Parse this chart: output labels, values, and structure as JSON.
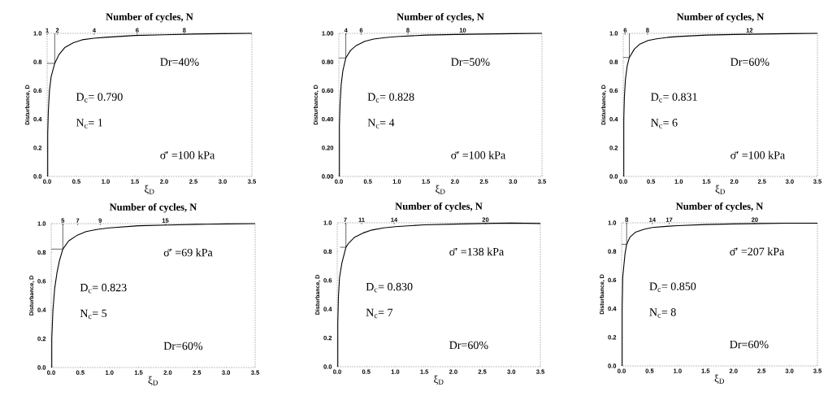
{
  "chart_data": [
    {
      "type": "line",
      "title": "Number of cycles, N",
      "xlabel": "ξ$_{D}$",
      "ylabel": "Disturbance, D",
      "xlim": [
        0,
        3.5
      ],
      "ylim": [
        0,
        1
      ],
      "xticks": [
        {
          "value": 0,
          "label": "0.0"
        },
        {
          "value": 0.5,
          "label": "0.5"
        },
        {
          "value": 1,
          "label": "1.0"
        },
        {
          "value": 1.5,
          "label": "1.5"
        },
        {
          "value": 2,
          "label": "2.0"
        },
        {
          "value": 2.5,
          "label": "2.5"
        },
        {
          "value": 3,
          "label": "3.0"
        },
        {
          "value": 3.5,
          "label": "3.5"
        }
      ],
      "yticks": [
        {
          "value": 0,
          "label": "0.0"
        },
        {
          "value": 0.2,
          "label": "0.2"
        },
        {
          "value": 0.4,
          "label": "0.4"
        },
        {
          "value": 0.6,
          "label": "0.6"
        },
        {
          "value": 0.8,
          "label": "0.8"
        },
        {
          "value": 1,
          "label": "1.0"
        }
      ],
      "series": [
        {
          "color": "#000000",
          "x": [
            0.01,
            0.01,
            0.02,
            0.04,
            0.07,
            0.13,
            0.2,
            0.3,
            0.45,
            0.6,
            0.8,
            1.0,
            1.5,
            2.0,
            2.5,
            3.0,
            3.5
          ],
          "values": [
            0,
            0.3,
            0.45,
            0.6,
            0.7,
            0.79,
            0.85,
            0.9,
            0.935,
            0.955,
            0.966,
            0.972,
            0.985,
            0.99,
            0.995,
            0.998,
            1.0
          ]
        },
        {
          "color": "#000000",
          "x": [
            0,
            0.13,
            0.13
          ],
          "values": [
            0.79,
            0.79,
            1.0
          ]
        }
      ],
      "annotations": [
        "Dr=40%",
        "D$_{c}$= 0.790",
        "N$_{c}$= 1",
        "σ̄′ =100 kPa",
        "1",
        "2",
        "4",
        "6",
        "8"
      ]
    },
    {
      "type": "line",
      "title": "Number of cycles, N",
      "xlabel": "ξ$_{D}$",
      "ylabel": "Disturbance, D",
      "xlim": [
        0,
        3.5
      ],
      "ylim": [
        0,
        1
      ],
      "xticks": [
        {
          "value": 0,
          "label": "0.0"
        },
        {
          "value": 0.5,
          "label": "0.5"
        },
        {
          "value": 1,
          "label": "1.0"
        },
        {
          "value": 1.5,
          "label": "1.5"
        },
        {
          "value": 2,
          "label": "2.0"
        },
        {
          "value": 2.5,
          "label": "2.5"
        },
        {
          "value": 3,
          "label": "3.0"
        },
        {
          "value": 3.5,
          "label": "3.5"
        }
      ],
      "yticks": [
        {
          "value": 0,
          "label": "0.00"
        },
        {
          "value": 0.2,
          "label": "0.20"
        },
        {
          "value": 0.4,
          "label": "0.40"
        },
        {
          "value": 0.6,
          "label": "0.60"
        },
        {
          "value": 0.8,
          "label": "0.80"
        },
        {
          "value": 1,
          "label": "1.00"
        }
      ],
      "series": [
        {
          "color": "#000000",
          "x": [
            0.01,
            0.01,
            0.02,
            0.04,
            0.07,
            0.12,
            0.2,
            0.3,
            0.45,
            0.6,
            0.8,
            1.0,
            1.5,
            2.0,
            2.5,
            3.0,
            3.5
          ],
          "values": [
            0,
            0.35,
            0.5,
            0.64,
            0.74,
            0.828,
            0.88,
            0.915,
            0.945,
            0.96,
            0.97,
            0.977,
            0.988,
            0.992,
            0.995,
            0.998,
            1.0
          ]
        },
        {
          "color": "#000000",
          "x": [
            0,
            0.12,
            0.12
          ],
          "values": [
            0.828,
            0.828,
            1.0
          ]
        }
      ],
      "annotations": [
        "Dr=50%",
        "D$_{c}$= 0.828",
        "N$_{c}$= 4",
        "σ̄′ =100 kPa",
        "4",
        "6",
        "8",
        "10"
      ]
    },
    {
      "type": "line",
      "title": "Number of cycles, N",
      "xlabel": "ξ$_{D}$",
      "ylabel": "Disturbance, D",
      "xlim": [
        0,
        3.5
      ],
      "ylim": [
        0,
        1
      ],
      "xticks": [
        {
          "value": 0,
          "label": "0.0"
        },
        {
          "value": 0.5,
          "label": "0.5"
        },
        {
          "value": 1,
          "label": "1.0"
        },
        {
          "value": 1.5,
          "label": "1.5"
        },
        {
          "value": 2,
          "label": "2.0"
        },
        {
          "value": 2.5,
          "label": "2.5"
        },
        {
          "value": 3,
          "label": "3.0"
        },
        {
          "value": 3.5,
          "label": "3.5"
        }
      ],
      "yticks": [
        {
          "value": 0,
          "label": "0.0"
        },
        {
          "value": 0.2,
          "label": "0.2"
        },
        {
          "value": 0.4,
          "label": "0.4"
        },
        {
          "value": 0.6,
          "label": "0.6"
        },
        {
          "value": 0.8,
          "label": "0.8"
        },
        {
          "value": 1,
          "label": "1.0"
        }
      ],
      "series": [
        {
          "color": "#000000",
          "x": [
            0.01,
            0.01,
            0.02,
            0.04,
            0.07,
            0.11,
            0.2,
            0.3,
            0.45,
            0.6,
            0.8,
            1.0,
            1.5,
            2.0,
            2.5,
            3.0,
            3.5
          ],
          "values": [
            0,
            0.4,
            0.55,
            0.68,
            0.77,
            0.831,
            0.89,
            0.925,
            0.95,
            0.962,
            0.972,
            0.978,
            0.988,
            0.992,
            0.995,
            0.998,
            1.0
          ]
        },
        {
          "color": "#000000",
          "x": [
            0,
            0.11,
            0.11
          ],
          "values": [
            0.831,
            0.831,
            1.0
          ]
        }
      ],
      "annotations": [
        "Dr=60%",
        "D$_{c}$= 0.831",
        "N$_{c}$= 6",
        "σ̄′ =100 kPa",
        "6",
        "8",
        "12"
      ]
    },
    {
      "type": "line",
      "title": "Number of cycles, N",
      "xlabel": "ξ$_{D}$",
      "ylabel": "Disturbance, D",
      "xlim": [
        0,
        3.5
      ],
      "ylim": [
        0,
        1
      ],
      "xticks": [
        {
          "value": 0,
          "label": "0.0"
        },
        {
          "value": 0.5,
          "label": "0.5"
        },
        {
          "value": 1,
          "label": "1.0"
        },
        {
          "value": 1.5,
          "label": "1.5"
        },
        {
          "value": 2,
          "label": "2.0"
        },
        {
          "value": 2.5,
          "label": "2.5"
        },
        {
          "value": 3,
          "label": "3.0"
        },
        {
          "value": 3.5,
          "label": "3.5"
        }
      ],
      "yticks": [
        {
          "value": 0,
          "label": "0.0"
        },
        {
          "value": 0.2,
          "label": "0.2"
        },
        {
          "value": 0.4,
          "label": "0.4"
        },
        {
          "value": 0.6,
          "label": "0.6"
        },
        {
          "value": 0.8,
          "label": "0.8"
        },
        {
          "value": 1,
          "label": "1.0"
        }
      ],
      "series": [
        {
          "color": "#000000",
          "x": [
            0.01,
            0.01,
            0.03,
            0.06,
            0.1,
            0.14,
            0.2,
            0.3,
            0.45,
            0.6,
            0.8,
            1.0,
            1.5,
            2.0,
            2.5,
            3.0,
            3.5
          ],
          "values": [
            0,
            0.2,
            0.4,
            0.55,
            0.66,
            0.74,
            0.823,
            0.88,
            0.92,
            0.945,
            0.96,
            0.97,
            0.985,
            0.99,
            0.995,
            0.998,
            1.0
          ]
        },
        {
          "color": "#000000",
          "x": [
            0,
            0.2,
            0.2
          ],
          "values": [
            0.823,
            0.823,
            1.0
          ]
        }
      ],
      "annotations": [
        "σ̄′ =69 kPa",
        "D$_{c}$= 0.823",
        "N$_{c}$= 5",
        "Dr=60%",
        "5",
        "7",
        "9",
        "15"
      ]
    },
    {
      "type": "line",
      "title": "Number of cycles, N",
      "xlabel": "ξ$_{D}$",
      "ylabel": "Disturbance, D",
      "xlim": [
        0,
        3.5
      ],
      "ylim": [
        0,
        1
      ],
      "xticks": [
        {
          "value": 0,
          "label": "0.0"
        },
        {
          "value": 0.5,
          "label": "0.5"
        },
        {
          "value": 1,
          "label": "1.0"
        },
        {
          "value": 1.5,
          "label": "1.5"
        },
        {
          "value": 2,
          "label": "2.0"
        },
        {
          "value": 2.5,
          "label": "2.5"
        },
        {
          "value": 3,
          "label": "3.0"
        },
        {
          "value": 3.5,
          "label": "3.5"
        }
      ],
      "yticks": [
        {
          "value": 0,
          "label": "0.0"
        },
        {
          "value": 0.2,
          "label": "0.2"
        },
        {
          "value": 0.4,
          "label": "0.4"
        },
        {
          "value": 0.6,
          "label": "0.6"
        },
        {
          "value": 0.8,
          "label": "0.8"
        },
        {
          "value": 1,
          "label": "1.0"
        }
      ],
      "series": [
        {
          "color": "#000000",
          "x": [
            0.01,
            0.01,
            0.02,
            0.04,
            0.08,
            0.15,
            0.2,
            0.3,
            0.45,
            0.6,
            0.8,
            1.0,
            1.5,
            2.0,
            2.5,
            3.0,
            3.5
          ],
          "values": [
            0,
            0.3,
            0.48,
            0.62,
            0.72,
            0.83,
            0.86,
            0.9,
            0.93,
            0.95,
            0.965,
            0.973,
            0.986,
            0.991,
            0.995,
            0.998,
            0.995
          ]
        },
        {
          "color": "#000000",
          "x": [
            0.05,
            0.15,
            0.15
          ],
          "values": [
            0.83,
            0.83,
            1.0
          ]
        }
      ],
      "annotations": [
        "σ̄′ =138 kPa",
        "D$_{c}$= 0.830",
        "N$_{c}$= 7",
        "Dr=60%",
        "7",
        "11",
        "14",
        "20"
      ]
    },
    {
      "type": "line",
      "title": "Number of cycles, N",
      "xlabel": "ξ$_{D}$",
      "ylabel": "Disturbance, D",
      "xlim": [
        0,
        3.5
      ],
      "ylim": [
        0,
        1
      ],
      "xticks": [
        {
          "value": 0,
          "label": "0.0"
        },
        {
          "value": 0.5,
          "label": "0.5"
        },
        {
          "value": 1,
          "label": "1.0"
        },
        {
          "value": 1.5,
          "label": "1.5"
        },
        {
          "value": 2,
          "label": "2.0"
        },
        {
          "value": 2.5,
          "label": "2.5"
        },
        {
          "value": 3,
          "label": "3.0"
        },
        {
          "value": 3.5,
          "label": "3.5"
        }
      ],
      "yticks": [
        {
          "value": 0,
          "label": "0.0"
        },
        {
          "value": 0.2,
          "label": "0.2"
        },
        {
          "value": 0.4,
          "label": "0.4"
        },
        {
          "value": 0.6,
          "label": "0.6"
        },
        {
          "value": 0.8,
          "label": "0.8"
        },
        {
          "value": 1,
          "label": "1.0"
        }
      ],
      "series": [
        {
          "color": "#000000",
          "x": [
            0.01,
            0.01,
            0.02,
            0.04,
            0.06,
            0.09,
            0.15,
            0.25,
            0.4,
            0.55,
            0.8,
            1.0,
            1.5,
            2.0,
            2.5,
            3.0,
            3.5
          ],
          "values": [
            0,
            0.4,
            0.62,
            0.7,
            0.78,
            0.85,
            0.9,
            0.935,
            0.955,
            0.967,
            0.975,
            0.98,
            0.988,
            0.992,
            0.995,
            0.997,
            0.997
          ]
        },
        {
          "color": "#000000",
          "x": [
            0,
            0.09,
            0.09
          ],
          "values": [
            0.85,
            0.85,
            1.0
          ]
        }
      ],
      "annotations": [
        "σ̄′ =207 kPa",
        "D$_{c}$= 0.850",
        "N$_{c}$= 8",
        "Dr=60%",
        "8",
        "14",
        "17",
        "20"
      ]
    }
  ]
}
